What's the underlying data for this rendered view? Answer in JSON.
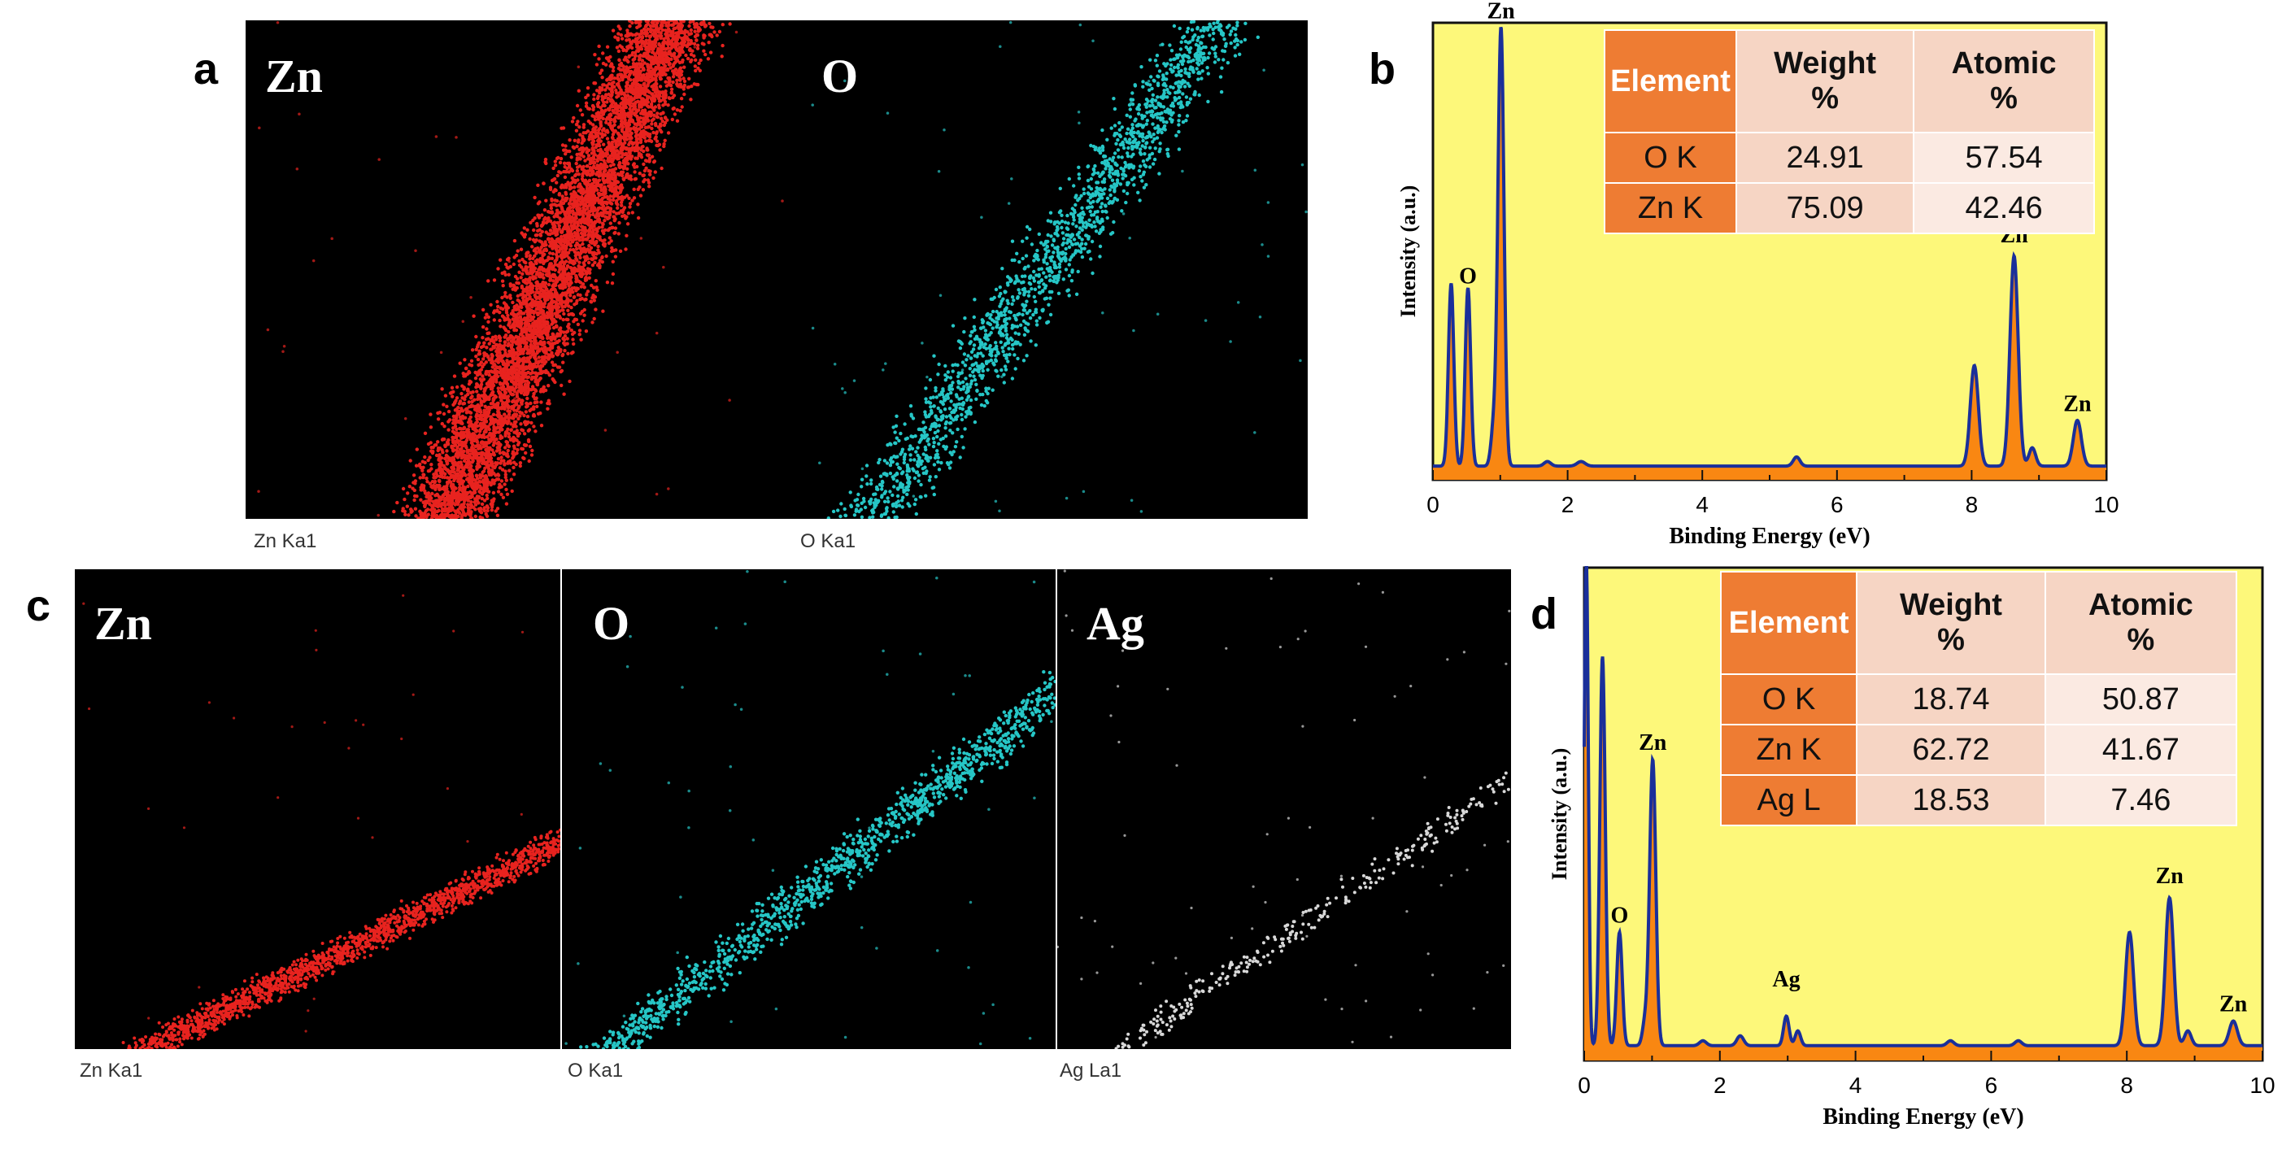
{
  "panels": {
    "a": {
      "letter": "a",
      "maps": [
        {
          "title": "Zn",
          "caption": "Zn Ka1",
          "color": "#e8231f"
        },
        {
          "title": "O",
          "caption": "O Ka1",
          "color": "#26c6c6"
        }
      ]
    },
    "c": {
      "letter": "c",
      "maps": [
        {
          "title": "Zn",
          "caption": "Zn Ka1",
          "color": "#e8231f"
        },
        {
          "title": "O",
          "caption": "O Ka1",
          "color": "#26c6c6"
        },
        {
          "title": "Ag",
          "caption": "Ag La1",
          "color": "#d8d8d8"
        }
      ]
    },
    "b": {
      "letter": "b",
      "table": {
        "headers": [
          "Element",
          "Weight %",
          "Atomic %"
        ],
        "rows": [
          {
            "element": "O K",
            "weight": "24.91",
            "atomic": "57.54"
          },
          {
            "element": "Zn K",
            "weight": "75.09",
            "atomic": "42.46"
          }
        ]
      }
    },
    "d": {
      "letter": "d",
      "table": {
        "headers": [
          "Element",
          "Weight %",
          "Atomic %"
        ],
        "rows": [
          {
            "element": "O K",
            "weight": "18.74",
            "atomic": "50.87"
          },
          {
            "element": "Zn K",
            "weight": "62.72",
            "atomic": "41.67"
          },
          {
            "element": "Ag L",
            "weight": "18.53",
            "atomic": "7.46"
          }
        ]
      }
    }
  },
  "colors": {
    "plot_bg": "#fdf87a",
    "fill": "#f98712",
    "line": "#1a2f9a",
    "table_accent": "#ee7c33"
  },
  "chart_data": [
    {
      "id": "b",
      "type": "line",
      "title": "",
      "xlabel": "Binding Energy (eV)",
      "ylabel": "Intensity (a.u.)",
      "xlim": [
        0,
        10
      ],
      "ylim": [
        0,
        100
      ],
      "xticks": [
        0,
        2,
        4,
        6,
        8,
        10
      ],
      "baseline": 3,
      "peaks": [
        {
          "x": 0.27,
          "h": 40,
          "w": 0.04
        },
        {
          "x": 0.52,
          "h": 39,
          "w": 0.04
        },
        {
          "x": 0.9,
          "h": 8,
          "w": 0.04
        },
        {
          "x": 1.01,
          "h": 96,
          "w": 0.045
        },
        {
          "x": 1.7,
          "h": 1,
          "w": 0.05
        },
        {
          "x": 2.2,
          "h": 1,
          "w": 0.06
        },
        {
          "x": 5.4,
          "h": 2,
          "w": 0.05
        },
        {
          "x": 8.04,
          "h": 22,
          "w": 0.06
        },
        {
          "x": 8.63,
          "h": 46,
          "w": 0.06
        },
        {
          "x": 8.9,
          "h": 4,
          "w": 0.05
        },
        {
          "x": 9.57,
          "h": 10,
          "w": 0.06
        }
      ],
      "peak_labels": [
        {
          "text": "Zn",
          "x": 1.01,
          "y": 101
        },
        {
          "text": "O",
          "x": 0.52,
          "y": 43
        },
        {
          "text": "Zn",
          "x": 8.63,
          "y": 52
        },
        {
          "text": "Zn",
          "x": 9.57,
          "y": 15
        }
      ]
    },
    {
      "id": "d",
      "type": "line",
      "title": "",
      "xlabel": "Binding Energy (eV)",
      "ylabel": "Intensity (a.u.)",
      "xlim": [
        0,
        10
      ],
      "ylim": [
        0,
        100
      ],
      "xticks": [
        0,
        2,
        4,
        6,
        8,
        10
      ],
      "baseline": 3,
      "peaks": [
        {
          "x": 0.03,
          "h": 100,
          "w": 0.03
        },
        {
          "x": 0.27,
          "h": 79,
          "w": 0.04
        },
        {
          "x": 0.52,
          "h": 23,
          "w": 0.04
        },
        {
          "x": 0.9,
          "h": 5,
          "w": 0.04
        },
        {
          "x": 1.01,
          "h": 58,
          "w": 0.045
        },
        {
          "x": 1.75,
          "h": 1,
          "w": 0.05
        },
        {
          "x": 2.3,
          "h": 2,
          "w": 0.05
        },
        {
          "x": 2.98,
          "h": 6,
          "w": 0.04
        },
        {
          "x": 3.15,
          "h": 3,
          "w": 0.04
        },
        {
          "x": 5.4,
          "h": 1,
          "w": 0.05
        },
        {
          "x": 6.4,
          "h": 1,
          "w": 0.05
        },
        {
          "x": 8.04,
          "h": 23,
          "w": 0.06
        },
        {
          "x": 8.63,
          "h": 30,
          "w": 0.06
        },
        {
          "x": 8.9,
          "h": 3,
          "w": 0.05
        },
        {
          "x": 9.57,
          "h": 5,
          "w": 0.06
        }
      ],
      "peak_labels": [
        {
          "text": "Zn",
          "x": 1.01,
          "y": 63
        },
        {
          "text": "O",
          "x": 0.52,
          "y": 28
        },
        {
          "text": "Ag",
          "x": 2.98,
          "y": 15
        },
        {
          "text": "Zn",
          "x": 8.63,
          "y": 36
        },
        {
          "text": "Zn",
          "x": 9.57,
          "y": 10
        }
      ]
    }
  ]
}
